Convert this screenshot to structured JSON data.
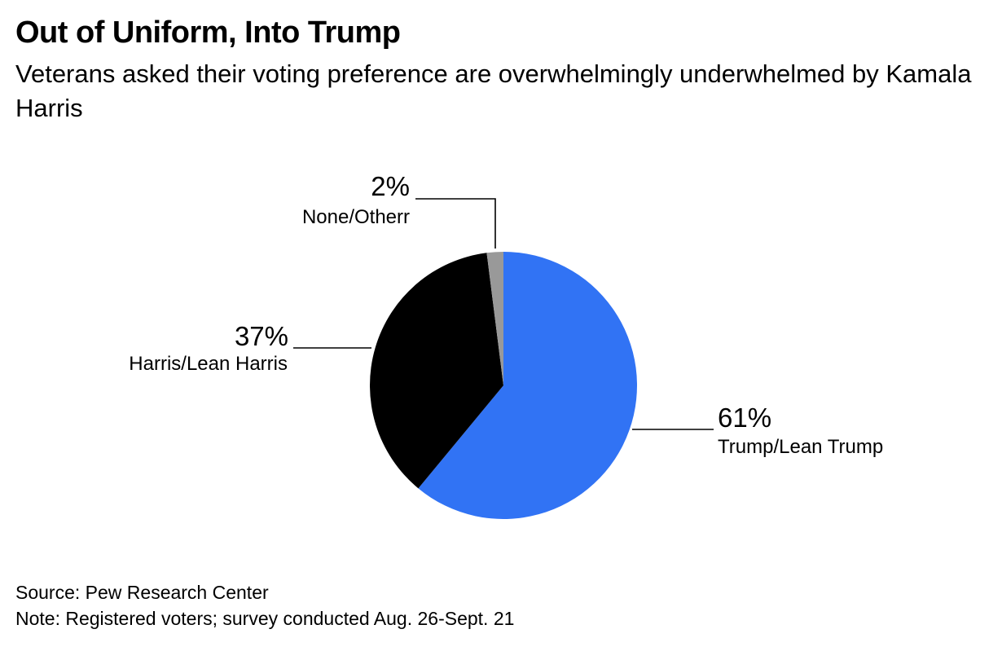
{
  "title": "Out of Uniform, Into Trump",
  "subtitle": "Veterans asked their voting preference are overwhelmingly underwhelmed by Kamala Harris",
  "source": "Source: Pew Research Center",
  "note": "Note: Registered voters; survey conducted Aug. 26-Sept. 21",
  "chart_data": {
    "type": "pie",
    "title": "Out of Uniform, Into Trump",
    "slices": [
      {
        "label": "Trump/Lean Trump",
        "value": 61,
        "value_label": "61%",
        "color": "#3173f4"
      },
      {
        "label": "Harris/Lean Harris",
        "value": 37,
        "value_label": "37%",
        "color": "#000000"
      },
      {
        "label": "None/Otherr",
        "value": 2,
        "value_label": "2%",
        "color": "#999999"
      }
    ],
    "start": "12 o'clock",
    "direction": "clockwise",
    "legend": "none (direct labels)"
  }
}
